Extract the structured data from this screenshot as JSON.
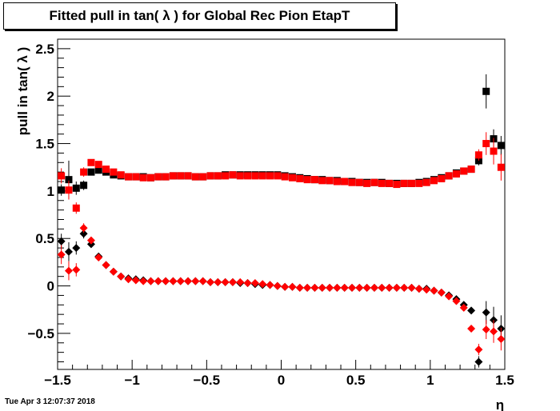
{
  "title": "Fitted pull in tan( λ ) for Global Rec Pion EtapT",
  "timestamp": "Tue Apr  3 12:07:37 2018",
  "chart_data": {
    "type": "scatter",
    "title": "Fitted pull in tan( λ ) for Global Rec Pion EtapT",
    "xlabel": "η",
    "ylabel": "pull in tan( λ )",
    "xlim": [
      -1.5,
      1.5
    ],
    "ylim": [
      -0.88,
      2.6
    ],
    "xticks": [
      "−1.5",
      "−1",
      "−0.5",
      "0",
      "0.5",
      "1",
      "1.5"
    ],
    "xtick_values": [
      -1.5,
      -1,
      -0.5,
      0,
      0.5,
      1,
      1.5
    ],
    "yticks": [
      "−0.5",
      "0",
      "0.5",
      "1",
      "1.5",
      "2",
      "2.5"
    ],
    "ytick_values": [
      -0.5,
      0,
      0.5,
      1,
      1.5,
      2,
      2.5
    ],
    "grid": false,
    "x": [
      -1.475,
      -1.425,
      -1.375,
      -1.325,
      -1.275,
      -1.225,
      -1.175,
      -1.125,
      -1.075,
      -1.025,
      -0.975,
      -0.925,
      -0.875,
      -0.825,
      -0.775,
      -0.725,
      -0.675,
      -0.625,
      -0.575,
      -0.525,
      -0.475,
      -0.425,
      -0.375,
      -0.325,
      -0.275,
      -0.225,
      -0.175,
      -0.125,
      -0.075,
      -0.025,
      0.025,
      0.075,
      0.125,
      0.175,
      0.225,
      0.275,
      0.325,
      0.375,
      0.425,
      0.475,
      0.525,
      0.575,
      0.625,
      0.675,
      0.725,
      0.775,
      0.825,
      0.875,
      0.925,
      0.975,
      1.025,
      1.075,
      1.125,
      1.175,
      1.225,
      1.275,
      1.325,
      1.375,
      1.425,
      1.475
    ],
    "series": [
      {
        "marker": "square",
        "color": "#000000",
        "values": [
          1.01,
          1.12,
          1.03,
          1.06,
          1.2,
          1.22,
          1.2,
          1.17,
          1.16,
          1.15,
          1.15,
          1.15,
          1.14,
          1.15,
          1.15,
          1.16,
          1.16,
          1.16,
          1.15,
          1.15,
          1.16,
          1.16,
          1.17,
          1.17,
          1.17,
          1.17,
          1.17,
          1.17,
          1.17,
          1.17,
          1.16,
          1.15,
          1.14,
          1.13,
          1.12,
          1.12,
          1.11,
          1.11,
          1.1,
          1.1,
          1.09,
          1.09,
          1.09,
          1.09,
          1.08,
          1.08,
          1.08,
          1.08,
          1.09,
          1.1,
          1.12,
          1.14,
          1.16,
          1.19,
          1.21,
          1.23,
          1.32,
          2.05,
          1.55,
          1.48
        ],
        "errors": [
          0.06,
          0.2,
          0.07,
          0.05,
          0.03,
          0.02,
          0.01,
          0.01,
          0.01,
          0.01,
          0.01,
          0.01,
          0.01,
          0.01,
          0.01,
          0.01,
          0.01,
          0.01,
          0.01,
          0.01,
          0.01,
          0.01,
          0.01,
          0.01,
          0.01,
          0.01,
          0.01,
          0.01,
          0.01,
          0.01,
          0.01,
          0.01,
          0.01,
          0.01,
          0.01,
          0.01,
          0.01,
          0.01,
          0.01,
          0.01,
          0.01,
          0.01,
          0.01,
          0.01,
          0.01,
          0.01,
          0.01,
          0.01,
          0.01,
          0.01,
          0.01,
          0.01,
          0.01,
          0.01,
          0.02,
          0.03,
          0.05,
          0.18,
          0.1,
          0.1
        ]
      },
      {
        "marker": "square",
        "color": "#ff0000",
        "values": [
          1.16,
          1.01,
          0.82,
          1.2,
          1.3,
          1.28,
          1.23,
          1.2,
          1.17,
          1.15,
          1.15,
          1.14,
          1.14,
          1.15,
          1.15,
          1.16,
          1.16,
          1.16,
          1.15,
          1.15,
          1.16,
          1.16,
          1.16,
          1.17,
          1.16,
          1.16,
          1.16,
          1.16,
          1.16,
          1.16,
          1.15,
          1.14,
          1.13,
          1.12,
          1.12,
          1.11,
          1.11,
          1.1,
          1.1,
          1.09,
          1.09,
          1.08,
          1.09,
          1.08,
          1.08,
          1.07,
          1.08,
          1.08,
          1.08,
          1.09,
          1.11,
          1.13,
          1.16,
          1.18,
          1.21,
          1.23,
          1.38,
          1.5,
          1.42,
          1.25
        ],
        "errors": [
          0.08,
          0.1,
          0.06,
          0.05,
          0.03,
          0.02,
          0.01,
          0.01,
          0.01,
          0.01,
          0.01,
          0.01,
          0.01,
          0.01,
          0.01,
          0.01,
          0.01,
          0.01,
          0.01,
          0.01,
          0.01,
          0.01,
          0.01,
          0.01,
          0.01,
          0.01,
          0.01,
          0.01,
          0.01,
          0.01,
          0.01,
          0.01,
          0.01,
          0.01,
          0.01,
          0.01,
          0.01,
          0.01,
          0.01,
          0.01,
          0.01,
          0.01,
          0.01,
          0.01,
          0.01,
          0.01,
          0.01,
          0.01,
          0.01,
          0.01,
          0.01,
          0.01,
          0.01,
          0.01,
          0.02,
          0.03,
          0.06,
          0.12,
          0.14,
          0.14
        ]
      },
      {
        "marker": "diamond",
        "color": "#000000",
        "values": [
          0.47,
          0.36,
          0.4,
          0.55,
          0.44,
          0.31,
          0.22,
          0.15,
          0.1,
          0.08,
          0.07,
          0.06,
          0.05,
          0.05,
          0.05,
          0.05,
          0.05,
          0.05,
          0.05,
          0.05,
          0.04,
          0.04,
          0.04,
          0.04,
          0.03,
          0.03,
          0.02,
          0.01,
          0.01,
          0.0,
          -0.01,
          -0.01,
          -0.02,
          -0.02,
          -0.02,
          -0.02,
          -0.02,
          -0.02,
          -0.02,
          -0.02,
          -0.02,
          -0.02,
          -0.02,
          -0.02,
          -0.02,
          -0.02,
          -0.02,
          -0.02,
          -0.03,
          -0.03,
          -0.05,
          -0.07,
          -0.1,
          -0.14,
          -0.2,
          -0.26,
          -0.8,
          -0.28,
          -0.36,
          -0.45
        ],
        "errors": [
          0.08,
          0.1,
          0.07,
          0.05,
          0.03,
          0.02,
          0.01,
          0.01,
          0.01,
          0.01,
          0.01,
          0.01,
          0.01,
          0.01,
          0.01,
          0.01,
          0.01,
          0.01,
          0.01,
          0.01,
          0.01,
          0.01,
          0.01,
          0.01,
          0.01,
          0.01,
          0.01,
          0.01,
          0.01,
          0.01,
          0.01,
          0.01,
          0.01,
          0.01,
          0.01,
          0.01,
          0.01,
          0.01,
          0.01,
          0.01,
          0.01,
          0.01,
          0.01,
          0.01,
          0.01,
          0.01,
          0.01,
          0.01,
          0.01,
          0.01,
          0.01,
          0.01,
          0.01,
          0.01,
          0.02,
          0.03,
          0.06,
          0.12,
          0.14,
          0.14
        ]
      },
      {
        "marker": "diamond",
        "color": "#ff0000",
        "values": [
          0.33,
          0.16,
          0.17,
          0.61,
          0.48,
          0.3,
          0.22,
          0.15,
          0.1,
          0.07,
          0.06,
          0.05,
          0.05,
          0.05,
          0.05,
          0.05,
          0.05,
          0.05,
          0.05,
          0.05,
          0.04,
          0.04,
          0.04,
          0.04,
          0.04,
          0.03,
          0.03,
          0.02,
          0.01,
          0.0,
          -0.01,
          -0.01,
          -0.02,
          -0.02,
          -0.02,
          -0.02,
          -0.02,
          -0.02,
          -0.02,
          -0.02,
          -0.02,
          -0.02,
          -0.02,
          -0.02,
          -0.02,
          -0.02,
          -0.02,
          -0.02,
          -0.03,
          -0.04,
          -0.05,
          -0.07,
          -0.11,
          -0.16,
          -0.23,
          -0.45,
          -0.67,
          -0.46,
          -0.48,
          -0.56
        ],
        "errors": [
          0.1,
          0.1,
          0.07,
          0.05,
          0.03,
          0.02,
          0.01,
          0.01,
          0.01,
          0.01,
          0.01,
          0.01,
          0.01,
          0.01,
          0.01,
          0.01,
          0.01,
          0.01,
          0.01,
          0.01,
          0.01,
          0.01,
          0.01,
          0.01,
          0.01,
          0.01,
          0.01,
          0.01,
          0.01,
          0.01,
          0.01,
          0.01,
          0.01,
          0.01,
          0.01,
          0.01,
          0.01,
          0.01,
          0.01,
          0.01,
          0.01,
          0.01,
          0.01,
          0.01,
          0.01,
          0.01,
          0.01,
          0.01,
          0.01,
          0.01,
          0.01,
          0.01,
          0.01,
          0.01,
          0.02,
          0.03,
          0.06,
          0.1,
          0.12,
          0.12
        ]
      }
    ]
  }
}
